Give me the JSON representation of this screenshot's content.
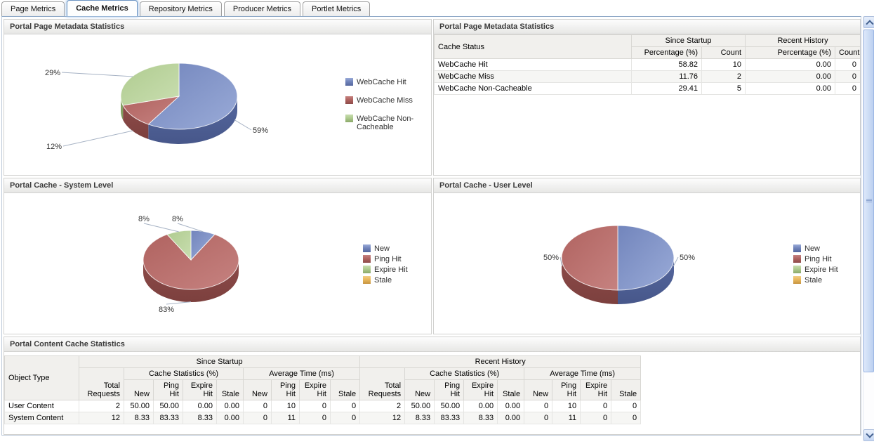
{
  "tabs": {
    "items": [
      {
        "label": "Page Metrics",
        "active": false
      },
      {
        "label": "Cache Metrics",
        "active": true
      },
      {
        "label": "Repository Metrics",
        "active": false
      },
      {
        "label": "Producer Metrics",
        "active": false
      },
      {
        "label": "Portlet Metrics",
        "active": false
      }
    ]
  },
  "colors": {
    "series": {
      "blue": {
        "base": "#7285BC",
        "light": "#9AABD8",
        "dark": "#55679E",
        "darker": "#47578A"
      },
      "red": {
        "base": "#B06360",
        "light": "#C68280",
        "dark": "#8D4B49",
        "darker": "#7C403E"
      },
      "green": {
        "base": "#AFCB8F",
        "light": "#C9DEB0",
        "dark": "#8CA96A",
        "darker": "#7C985C"
      },
      "orange": {
        "base": "#E9B85D",
        "light": "#F2CE85",
        "dark": "#C79440",
        "darker": "#B28437"
      }
    },
    "active_tab_border": "#6B93C2"
  },
  "panels": {
    "metadata_chart": {
      "title": "Portal Page Metadata Statistics"
    },
    "metadata_table": {
      "title": "Portal Page Metadata Statistics",
      "columns": {
        "cache_status": "Cache Status",
        "since_startup": "Since Startup",
        "recent_history": "Recent History",
        "percentage": "Percentage (%)",
        "count": "Count"
      },
      "rows": [
        {
          "cache_status": "WebCache Hit",
          "ss_percentage": "58.82",
          "ss_count": "10",
          "rh_percentage": "0.00",
          "rh_count": "0"
        },
        {
          "cache_status": "WebCache Miss",
          "ss_percentage": "11.76",
          "ss_count": "2",
          "rh_percentage": "0.00",
          "rh_count": "0"
        },
        {
          "cache_status": "WebCache Non-Cacheable",
          "ss_percentage": "29.41",
          "ss_count": "5",
          "rh_percentage": "0.00",
          "rh_count": "0"
        }
      ]
    },
    "system_cache": {
      "title": "Portal Cache - System Level"
    },
    "user_cache": {
      "title": "Portal Cache - User Level"
    },
    "content_stats": {
      "title": "Portal Content Cache Statistics",
      "columns": {
        "object_type": "Object Type",
        "groups": [
          "Since Startup",
          "Recent History"
        ],
        "total_requests": "Total Requests",
        "cache_statistics": "Cache Statistics (%)",
        "average_time": "Average Time (ms)",
        "leaf": [
          "New",
          "Ping Hit",
          "Expire Hit",
          "Stale"
        ]
      },
      "rows": [
        {
          "object_type": "User Content",
          "values": [
            "2",
            "50.00",
            "50.00",
            "0.00",
            "0.00",
            "0",
            "10",
            "0",
            "0",
            "2",
            "50.00",
            "50.00",
            "0.00",
            "0.00",
            "0",
            "10",
            "0",
            "0"
          ]
        },
        {
          "object_type": "System Content",
          "values": [
            "12",
            "8.33",
            "83.33",
            "8.33",
            "0.00",
            "0",
            "11",
            "0",
            "0",
            "12",
            "8.33",
            "83.33",
            "8.33",
            "0.00",
            "0",
            "11",
            "0",
            "0"
          ]
        }
      ]
    }
  },
  "chart_data": [
    {
      "type": "pie",
      "title": "Portal Page Metadata Statistics",
      "labels": [
        "WebCache Hit",
        "WebCache Miss",
        "WebCache Non-Cacheable"
      ],
      "values": [
        58.82,
        11.76,
        29.41
      ],
      "slice_labels": [
        "59%",
        "12%",
        "29%"
      ],
      "colors": [
        "blue",
        "red",
        "green"
      ],
      "legend_position": "right"
    },
    {
      "type": "pie",
      "title": "Portal Cache - System Level",
      "labels": [
        "New",
        "Ping Hit",
        "Expire Hit",
        "Stale"
      ],
      "values": [
        8.33,
        83.33,
        8.33,
        0
      ],
      "slice_labels": [
        "8%",
        "83%",
        "8%",
        ""
      ],
      "colors": [
        "blue",
        "red",
        "green",
        "orange"
      ],
      "legend_position": "right"
    },
    {
      "type": "pie",
      "title": "Portal Cache - User Level",
      "labels": [
        "New",
        "Ping Hit",
        "Expire Hit",
        "Stale"
      ],
      "values": [
        50,
        50,
        0,
        0
      ],
      "slice_labels": [
        "50%",
        "50%",
        "",
        ""
      ],
      "colors": [
        "blue",
        "red",
        "green",
        "orange"
      ],
      "legend_position": "right"
    }
  ]
}
